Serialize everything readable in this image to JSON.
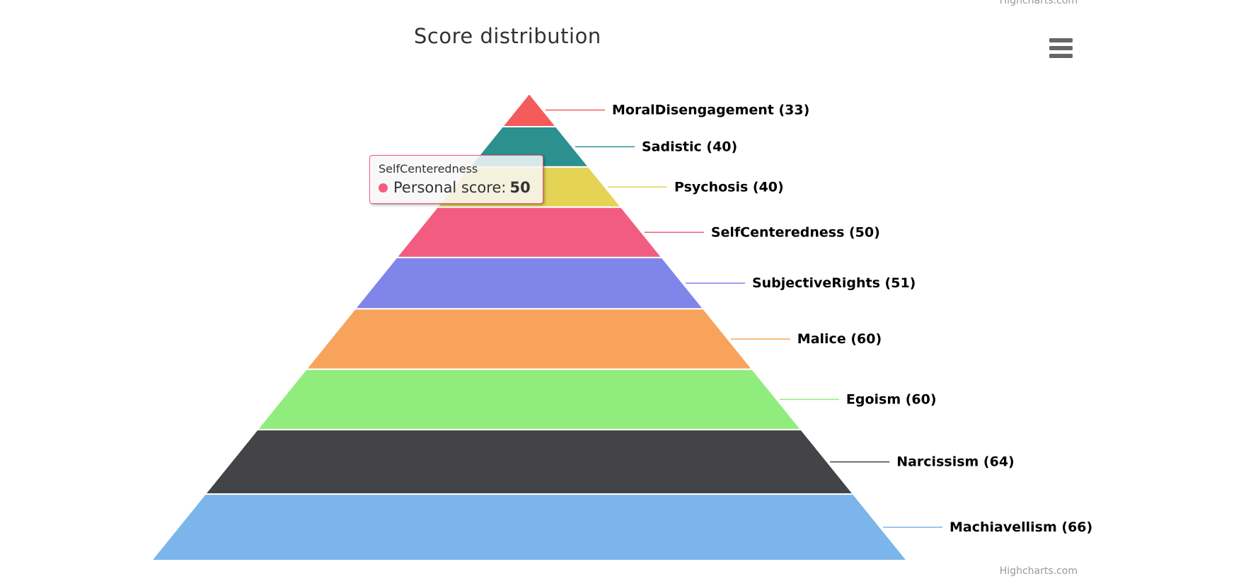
{
  "header": {
    "title": "Score distribution"
  },
  "credits": {
    "top_label": "Highcharts.com",
    "bottom_label": "Highcharts.com"
  },
  "menu": {
    "burger_color": "#666666"
  },
  "tooltip": {
    "header": "SelfCenteredness",
    "series_label": "Personal score",
    "separator": ": ",
    "value": "50",
    "marker_color": "#f15c80",
    "border_color": "#f15c80"
  },
  "chart_data": {
    "type": "pyramid",
    "title": "Score distribution",
    "series_name": "Personal score",
    "legend": "none",
    "order": "top-to-bottom",
    "categories": [
      "MoralDisengagement",
      "Sadistic",
      "Psychosis",
      "SelfCenteredness",
      "SubjectiveRights",
      "Malice",
      "Egoism",
      "Narcissism",
      "Machiavellism"
    ],
    "values": [
      33,
      40,
      40,
      50,
      51,
      60,
      60,
      64,
      66
    ],
    "labels": [
      "MoralDisengagement (33)",
      "Sadistic (40)",
      "Psychosis (40)",
      "SelfCenteredness (50)",
      "SubjectiveRights (51)",
      "Malice (60)",
      "Egoism (60)",
      "Narcissism (64)",
      "Machiavellism (66)"
    ],
    "colors": [
      "#f45b5b",
      "#2b908f",
      "#e4d354",
      "#f15c80",
      "#8085e9",
      "#f7a35c",
      "#90ed7d",
      "#434348",
      "#7cb5ec"
    ],
    "label_color": "#000000",
    "segment_border_color": "#ffffff"
  }
}
